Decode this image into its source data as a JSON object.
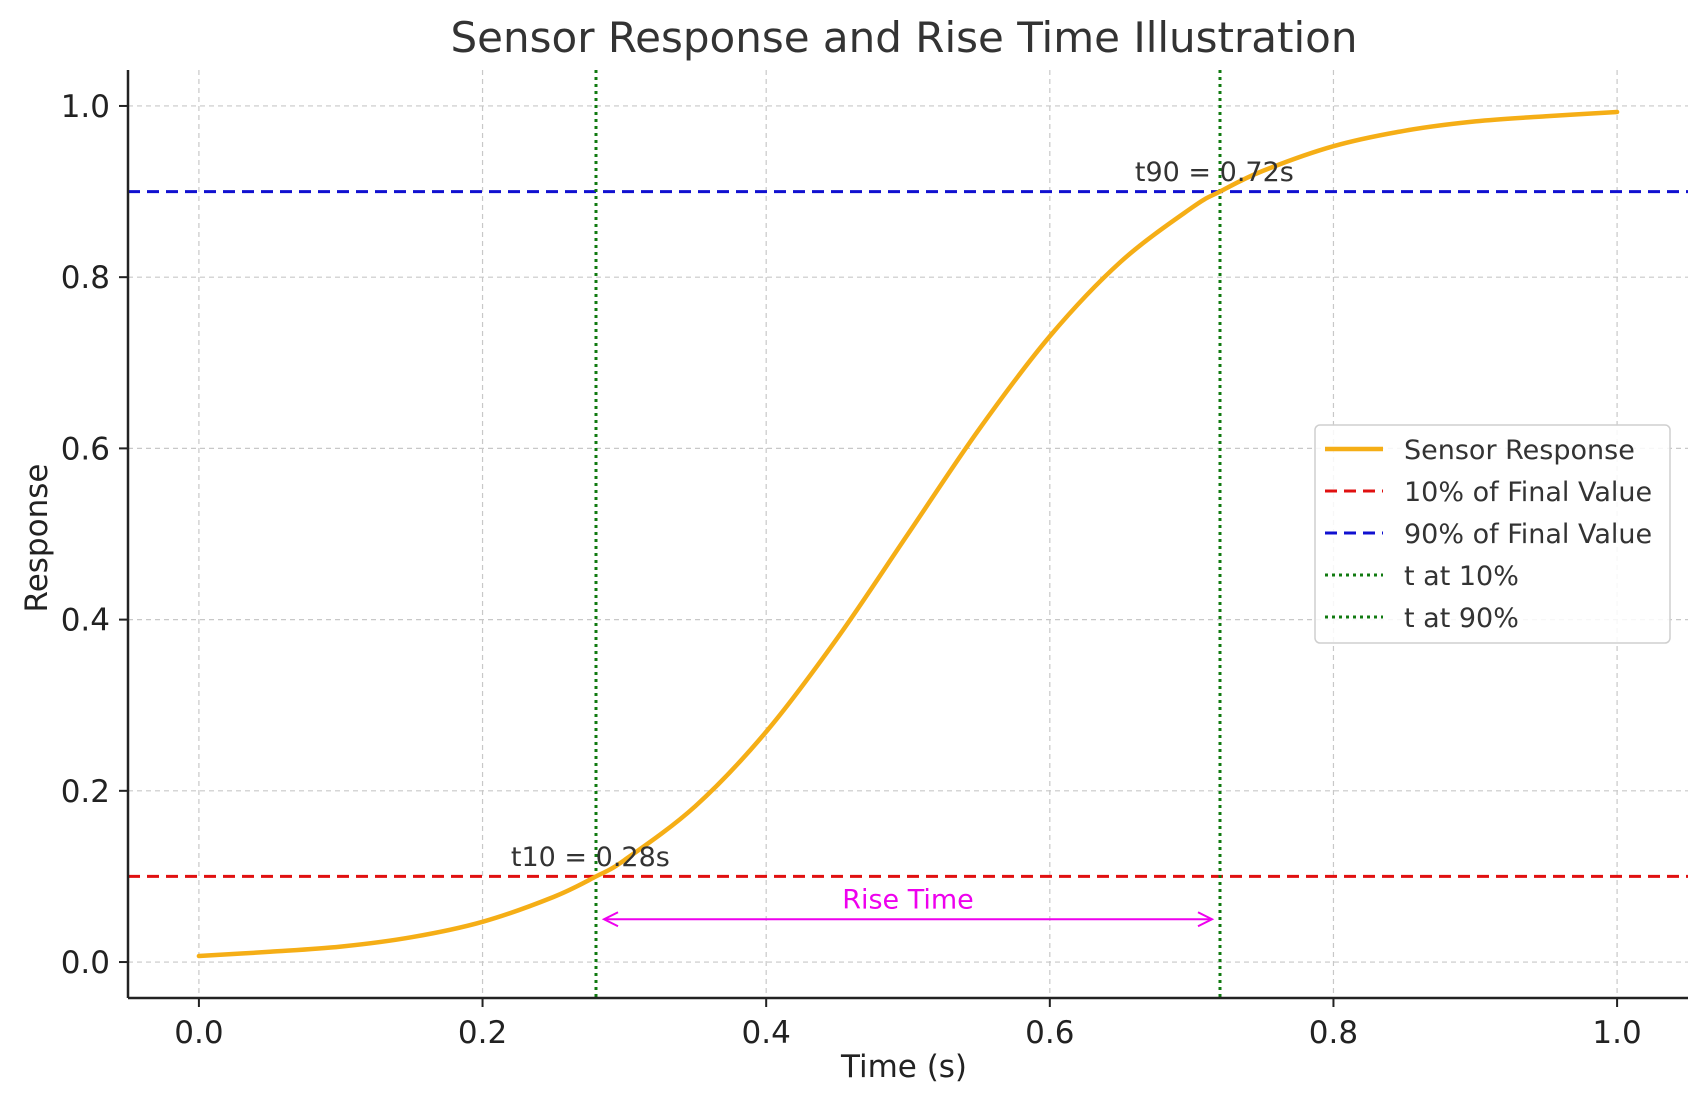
{
  "chart_data": {
    "type": "line",
    "title": "Sensor Response and Rise Time Illustration",
    "xlabel": "Time (s)",
    "ylabel": "Response",
    "xlim": [
      -0.05,
      1.05
    ],
    "ylim": [
      -0.042,
      1.042
    ],
    "xticks": [
      0.0,
      0.2,
      0.4,
      0.6,
      0.8,
      1.0
    ],
    "yticks": [
      0.0,
      0.2,
      0.4,
      0.6,
      0.8,
      1.0
    ],
    "xtick_labels": [
      "0.0",
      "0.2",
      "0.4",
      "0.6",
      "0.8",
      "1.0"
    ],
    "ytick_labels": [
      "0.0",
      "0.2",
      "0.4",
      "0.6",
      "0.8",
      "1.0"
    ],
    "grid": true,
    "legend_position": "right",
    "series": [
      {
        "name": "Sensor Response",
        "color": "#f5ae16",
        "style": "solid",
        "x": [
          0.0,
          0.05,
          0.1,
          0.15,
          0.2,
          0.25,
          0.28,
          0.3,
          0.35,
          0.4,
          0.45,
          0.5,
          0.55,
          0.6,
          0.65,
          0.7,
          0.72,
          0.75,
          0.8,
          0.85,
          0.9,
          0.95,
          1.0
        ],
        "y": [
          0.007,
          0.012,
          0.018,
          0.029,
          0.047,
          0.076,
          0.1,
          0.119,
          0.182,
          0.269,
          0.378,
          0.5,
          0.622,
          0.731,
          0.818,
          0.881,
          0.9,
          0.924,
          0.953,
          0.971,
          0.982,
          0.988,
          0.993
        ]
      }
    ],
    "hlines": [
      {
        "name": "10% of Final Value",
        "y": 0.1,
        "color": "#e01010",
        "style": "dashed"
      },
      {
        "name": "90% of Final Value",
        "y": 0.9,
        "color": "#1010d0",
        "style": "dashed"
      }
    ],
    "vlines": [
      {
        "name": "t at 10%",
        "x": 0.28,
        "color": "#107a10",
        "style": "dotted"
      },
      {
        "name": "t at 90%",
        "x": 0.72,
        "color": "#107a10",
        "style": "dotted"
      }
    ],
    "annotations": [
      {
        "text": "t10 = 0.28s",
        "x": 0.22,
        "y": 0.11,
        "color": "#333333"
      },
      {
        "text": "t90 = 0.72s",
        "x": 0.66,
        "y": 0.91,
        "color": "#333333"
      },
      {
        "text": "Rise Time",
        "x": 0.5,
        "y": 0.06,
        "color": "#ee00ee"
      }
    ],
    "arrow": {
      "x1": 0.28,
      "x2": 0.72,
      "y": 0.05,
      "color": "#ee00ee"
    },
    "legend": [
      {
        "label": "Sensor Response",
        "color": "#f5ae16",
        "style": "solid"
      },
      {
        "label": "10% of Final Value",
        "color": "#e01010",
        "style": "dashed"
      },
      {
        "label": "90% of Final Value",
        "color": "#1010d0",
        "style": "dashed"
      },
      {
        "label": "t at 10%",
        "color": "#107a10",
        "style": "dotted"
      },
      {
        "label": "t at 90%",
        "color": "#107a10",
        "style": "dotted"
      }
    ]
  }
}
